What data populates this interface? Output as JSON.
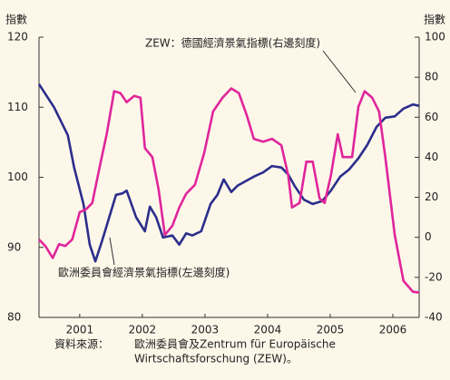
{
  "chart_data": {
    "type": "line",
    "y_label": "指數",
    "y2_label": "指數",
    "xlim": [
      2000.35,
      2006.42
    ],
    "xticks": [
      2001,
      2002,
      2003,
      2004,
      2005,
      2006
    ],
    "ylim": [
      80,
      120
    ],
    "yticks": [
      80,
      90,
      100,
      110,
      120
    ],
    "y2lim": [
      -40,
      100
    ],
    "y2ticks": [
      -40,
      -20,
      0,
      20,
      40,
      60,
      80,
      100
    ],
    "series": [
      {
        "name": "歐洲委員會經濟景氣指標(左邊刻度)",
        "color": "#2b2e8c",
        "x": [
          2000.35,
          2000.59,
          2000.81,
          2000.91,
          2001.06,
          2001.16,
          2001.25,
          2001.36,
          2001.58,
          2001.68,
          2001.75,
          2001.9,
          2002.04,
          2002.12,
          2002.22,
          2002.33,
          2002.48,
          2002.59,
          2002.7,
          2002.8,
          2002.94,
          2003.09,
          2003.2,
          2003.3,
          2003.42,
          2003.52,
          2003.64,
          2003.78,
          2003.93,
          2004.07,
          2004.22,
          2004.33,
          2004.43,
          2004.58,
          2004.72,
          2004.87,
          2005.01,
          2005.16,
          2005.3,
          2005.45,
          2005.59,
          2005.74,
          2005.88,
          2006.03,
          2006.17,
          2006.32,
          2006.42
        ],
        "values": [
          113.3,
          110,
          106,
          101.4,
          96.2,
          90.4,
          88,
          91,
          97.5,
          97.7,
          98.1,
          94.3,
          92.3,
          95.8,
          94.3,
          91.4,
          91.7,
          90.4,
          92,
          91.7,
          92.3,
          96.2,
          97.5,
          99.7,
          97.9,
          98.8,
          99.4,
          100.1,
          100.7,
          101.6,
          101.4,
          100.4,
          98.8,
          96.8,
          96.2,
          96.6,
          98.1,
          100.1,
          101.1,
          102.7,
          104.6,
          107.2,
          108.5,
          108.7,
          109.8,
          110.4,
          110.2
        ]
      },
      {
        "name": "ZEW：德國經濟景氣指標(右邊刻度)",
        "color": "#e0259b",
        "axis": "y2",
        "x": [
          2000.35,
          2000.45,
          2000.57,
          2000.67,
          2000.77,
          2000.88,
          2001.0,
          2001.1,
          2001.2,
          2001.32,
          2001.43,
          2001.55,
          2001.65,
          2001.75,
          2001.87,
          2001.97,
          2002.04,
          2002.16,
          2002.26,
          2002.36,
          2002.48,
          2002.59,
          2002.7,
          2002.84,
          2002.99,
          2003.13,
          2003.28,
          2003.42,
          2003.54,
          2003.67,
          2003.78,
          2003.93,
          2004.07,
          2004.22,
          2004.33,
          2004.39,
          2004.51,
          2004.62,
          2004.72,
          2004.83,
          2004.91,
          2005.01,
          2005.12,
          2005.2,
          2005.35,
          2005.45,
          2005.55,
          2005.67,
          2005.78,
          2005.88,
          2006.03,
          2006.17,
          2006.32,
          2006.42
        ],
        "values": [
          -1.1,
          -4.3,
          -10.3,
          -3.4,
          -4.3,
          -1.1,
          12.6,
          14,
          17.2,
          35.5,
          51.5,
          73,
          72.1,
          67.5,
          70.7,
          69.8,
          44.6,
          40.1,
          24,
          1.2,
          5.8,
          14.9,
          21.8,
          26.3,
          42.4,
          62.9,
          69.8,
          74.4,
          72.1,
          60.7,
          49.2,
          47.8,
          49.2,
          46,
          30.9,
          14.9,
          17.2,
          37.8,
          37.8,
          19.5,
          17.2,
          30.9,
          51.5,
          40.1,
          40.1,
          65.2,
          73,
          69.8,
          62.9,
          40.1,
          1.2,
          -21.7,
          -27.2,
          -27.6
        ]
      }
    ],
    "source": [
      "資料來源：",
      "歐洲委員會及Zentrum für Europäische",
      "Wirtschaftsforschung (ZEW)。"
    ]
  }
}
